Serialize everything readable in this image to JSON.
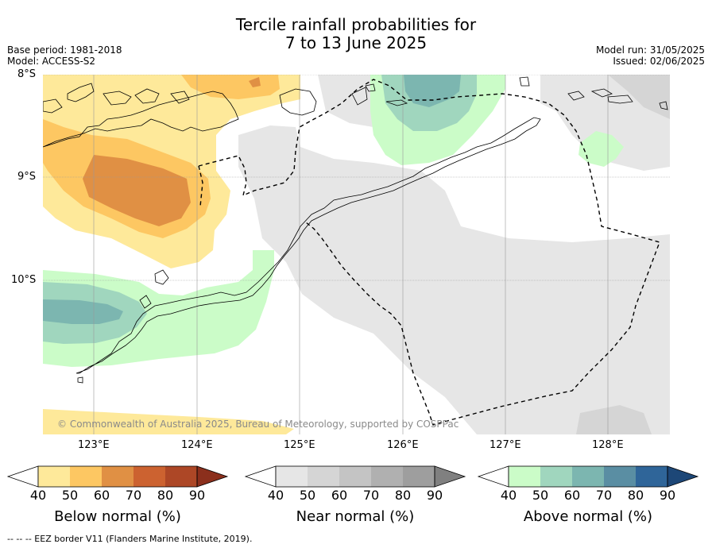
{
  "title_line1": "Tercile rainfall probabilities for",
  "title_line2": "7 to 13 June 2025",
  "base_period": "Base period: 1981-2018",
  "model": "Model: ACCESS-S2",
  "model_run": "Model run: 31/05/2025",
  "issued": "Issued: 02/06/2025",
  "lat_labels": [
    "8°S",
    "9°S",
    "10°S"
  ],
  "lon_labels": [
    "123°E",
    "124°E",
    "125°E",
    "126°E",
    "127°E",
    "128°E"
  ],
  "copyright": "© Commonwealth of Australia 2025, Bureau of Meteorology, supported by COSPPac",
  "colorbars": [
    {
      "title": "Below normal (%)",
      "ticks": [
        "40",
        "50",
        "60",
        "70",
        "80",
        "90"
      ],
      "colors": [
        "#ffffff",
        "#fee99a",
        "#fdc762",
        "#e09044",
        "#cc6230",
        "#ad4726",
        "#8b2f1c"
      ]
    },
    {
      "title": "Near normal (%)",
      "ticks": [
        "40",
        "50",
        "60",
        "70",
        "80",
        "90"
      ],
      "colors": [
        "#ffffff",
        "#e6e6e6",
        "#d5d5d5",
        "#c4c4c4",
        "#b0b0b0",
        "#9e9e9e",
        "#808080"
      ]
    },
    {
      "title": "Above normal (%)",
      "ticks": [
        "40",
        "50",
        "60",
        "70",
        "80",
        "90"
      ],
      "colors": [
        "#ffffff",
        "#cbfcc8",
        "#a0d6be",
        "#7cb6b0",
        "#5a8ea3",
        "#2f6599",
        "#1d4777"
      ]
    }
  ],
  "footnote": "-- -- -- EEZ border V11 (Flanders Marine Institute, 2019)."
}
